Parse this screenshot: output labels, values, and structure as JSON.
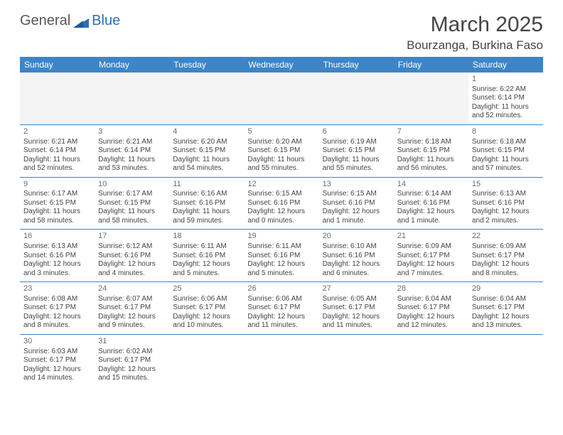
{
  "logo": {
    "text_general": "General",
    "text_blue": "Blue",
    "triangle_color": "#2d70b3"
  },
  "title": "March 2025",
  "location": "Bourzanga, Burkina Faso",
  "day_headers": [
    "Sunday",
    "Monday",
    "Tuesday",
    "Wednesday",
    "Thursday",
    "Friday",
    "Saturday"
  ],
  "colors": {
    "header_bg": "#3d85c6",
    "header_fg": "#ffffff",
    "row_divider": "#3d85c6",
    "empty_bg": "#f4f4f4",
    "text": "#444444"
  },
  "weeks": [
    [
      {
        "day": "",
        "sunrise": "",
        "sunset": "",
        "daylight": ""
      },
      {
        "day": "",
        "sunrise": "",
        "sunset": "",
        "daylight": ""
      },
      {
        "day": "",
        "sunrise": "",
        "sunset": "",
        "daylight": ""
      },
      {
        "day": "",
        "sunrise": "",
        "sunset": "",
        "daylight": ""
      },
      {
        "day": "",
        "sunrise": "",
        "sunset": "",
        "daylight": ""
      },
      {
        "day": "",
        "sunrise": "",
        "sunset": "",
        "daylight": ""
      },
      {
        "day": "1",
        "sunrise": "Sunrise: 6:22 AM",
        "sunset": "Sunset: 6:14 PM",
        "daylight": "Daylight: 11 hours and 52 minutes."
      }
    ],
    [
      {
        "day": "2",
        "sunrise": "Sunrise: 6:21 AM",
        "sunset": "Sunset: 6:14 PM",
        "daylight": "Daylight: 11 hours and 52 minutes."
      },
      {
        "day": "3",
        "sunrise": "Sunrise: 6:21 AM",
        "sunset": "Sunset: 6:14 PM",
        "daylight": "Daylight: 11 hours and 53 minutes."
      },
      {
        "day": "4",
        "sunrise": "Sunrise: 6:20 AM",
        "sunset": "Sunset: 6:15 PM",
        "daylight": "Daylight: 11 hours and 54 minutes."
      },
      {
        "day": "5",
        "sunrise": "Sunrise: 6:20 AM",
        "sunset": "Sunset: 6:15 PM",
        "daylight": "Daylight: 11 hours and 55 minutes."
      },
      {
        "day": "6",
        "sunrise": "Sunrise: 6:19 AM",
        "sunset": "Sunset: 6:15 PM",
        "daylight": "Daylight: 11 hours and 55 minutes."
      },
      {
        "day": "7",
        "sunrise": "Sunrise: 6:18 AM",
        "sunset": "Sunset: 6:15 PM",
        "daylight": "Daylight: 11 hours and 56 minutes."
      },
      {
        "day": "8",
        "sunrise": "Sunrise: 6:18 AM",
        "sunset": "Sunset: 6:15 PM",
        "daylight": "Daylight: 11 hours and 57 minutes."
      }
    ],
    [
      {
        "day": "9",
        "sunrise": "Sunrise: 6:17 AM",
        "sunset": "Sunset: 6:15 PM",
        "daylight": "Daylight: 11 hours and 58 minutes."
      },
      {
        "day": "10",
        "sunrise": "Sunrise: 6:17 AM",
        "sunset": "Sunset: 6:15 PM",
        "daylight": "Daylight: 11 hours and 58 minutes."
      },
      {
        "day": "11",
        "sunrise": "Sunrise: 6:16 AM",
        "sunset": "Sunset: 6:16 PM",
        "daylight": "Daylight: 11 hours and 59 minutes."
      },
      {
        "day": "12",
        "sunrise": "Sunrise: 6:15 AM",
        "sunset": "Sunset: 6:16 PM",
        "daylight": "Daylight: 12 hours and 0 minutes."
      },
      {
        "day": "13",
        "sunrise": "Sunrise: 6:15 AM",
        "sunset": "Sunset: 6:16 PM",
        "daylight": "Daylight: 12 hours and 1 minute."
      },
      {
        "day": "14",
        "sunrise": "Sunrise: 6:14 AM",
        "sunset": "Sunset: 6:16 PM",
        "daylight": "Daylight: 12 hours and 1 minute."
      },
      {
        "day": "15",
        "sunrise": "Sunrise: 6:13 AM",
        "sunset": "Sunset: 6:16 PM",
        "daylight": "Daylight: 12 hours and 2 minutes."
      }
    ],
    [
      {
        "day": "16",
        "sunrise": "Sunrise: 6:13 AM",
        "sunset": "Sunset: 6:16 PM",
        "daylight": "Daylight: 12 hours and 3 minutes."
      },
      {
        "day": "17",
        "sunrise": "Sunrise: 6:12 AM",
        "sunset": "Sunset: 6:16 PM",
        "daylight": "Daylight: 12 hours and 4 minutes."
      },
      {
        "day": "18",
        "sunrise": "Sunrise: 6:11 AM",
        "sunset": "Sunset: 6:16 PM",
        "daylight": "Daylight: 12 hours and 5 minutes."
      },
      {
        "day": "19",
        "sunrise": "Sunrise: 6:11 AM",
        "sunset": "Sunset: 6:16 PM",
        "daylight": "Daylight: 12 hours and 5 minutes."
      },
      {
        "day": "20",
        "sunrise": "Sunrise: 6:10 AM",
        "sunset": "Sunset: 6:16 PM",
        "daylight": "Daylight: 12 hours and 6 minutes."
      },
      {
        "day": "21",
        "sunrise": "Sunrise: 6:09 AM",
        "sunset": "Sunset: 6:17 PM",
        "daylight": "Daylight: 12 hours and 7 minutes."
      },
      {
        "day": "22",
        "sunrise": "Sunrise: 6:09 AM",
        "sunset": "Sunset: 6:17 PM",
        "daylight": "Daylight: 12 hours and 8 minutes."
      }
    ],
    [
      {
        "day": "23",
        "sunrise": "Sunrise: 6:08 AM",
        "sunset": "Sunset: 6:17 PM",
        "daylight": "Daylight: 12 hours and 8 minutes."
      },
      {
        "day": "24",
        "sunrise": "Sunrise: 6:07 AM",
        "sunset": "Sunset: 6:17 PM",
        "daylight": "Daylight: 12 hours and 9 minutes."
      },
      {
        "day": "25",
        "sunrise": "Sunrise: 6:06 AM",
        "sunset": "Sunset: 6:17 PM",
        "daylight": "Daylight: 12 hours and 10 minutes."
      },
      {
        "day": "26",
        "sunrise": "Sunrise: 6:06 AM",
        "sunset": "Sunset: 6:17 PM",
        "daylight": "Daylight: 12 hours and 11 minutes."
      },
      {
        "day": "27",
        "sunrise": "Sunrise: 6:05 AM",
        "sunset": "Sunset: 6:17 PM",
        "daylight": "Daylight: 12 hours and 11 minutes."
      },
      {
        "day": "28",
        "sunrise": "Sunrise: 6:04 AM",
        "sunset": "Sunset: 6:17 PM",
        "daylight": "Daylight: 12 hours and 12 minutes."
      },
      {
        "day": "29",
        "sunrise": "Sunrise: 6:04 AM",
        "sunset": "Sunset: 6:17 PM",
        "daylight": "Daylight: 12 hours and 13 minutes."
      }
    ],
    [
      {
        "day": "30",
        "sunrise": "Sunrise: 6:03 AM",
        "sunset": "Sunset: 6:17 PM",
        "daylight": "Daylight: 12 hours and 14 minutes."
      },
      {
        "day": "31",
        "sunrise": "Sunrise: 6:02 AM",
        "sunset": "Sunset: 6:17 PM",
        "daylight": "Daylight: 12 hours and 15 minutes."
      },
      {
        "day": "",
        "sunrise": "",
        "sunset": "",
        "daylight": ""
      },
      {
        "day": "",
        "sunrise": "",
        "sunset": "",
        "daylight": ""
      },
      {
        "day": "",
        "sunrise": "",
        "sunset": "",
        "daylight": ""
      },
      {
        "day": "",
        "sunrise": "",
        "sunset": "",
        "daylight": ""
      },
      {
        "day": "",
        "sunrise": "",
        "sunset": "",
        "daylight": ""
      }
    ]
  ]
}
